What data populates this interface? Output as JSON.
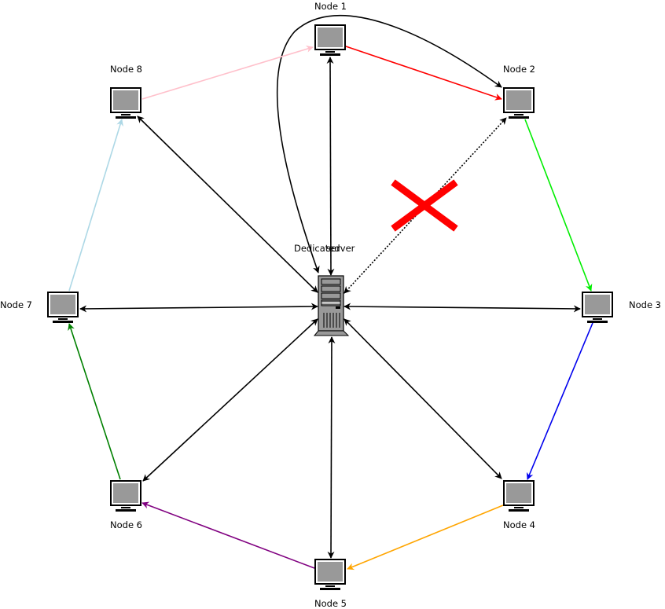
{
  "diagram": {
    "server_label_a": "Dedicated",
    "server_label_b": "server",
    "nodes": [
      {
        "id": "n1",
        "label": "Node 1"
      },
      {
        "id": "n2",
        "label": "Node 2"
      },
      {
        "id": "n3",
        "label": "Node 3"
      },
      {
        "id": "n4",
        "label": "Node 4"
      },
      {
        "id": "n5",
        "label": "Node 5"
      },
      {
        "id": "n6",
        "label": "Node 6"
      },
      {
        "id": "n7",
        "label": "Node 7"
      },
      {
        "id": "n8",
        "label": "Node 8"
      }
    ],
    "ring_colors": {
      "n1_n2": "#ff0000",
      "n2_n3": "#00ee00",
      "n3_n4": "#0000ee",
      "n4_n5": "#ffa500",
      "n5_n6": "#800080",
      "n6_n7": "#008000",
      "n7_n8": "#add8e6",
      "n8_n1": "#ffc0cb"
    },
    "broken_link_color": "#ff0000"
  }
}
